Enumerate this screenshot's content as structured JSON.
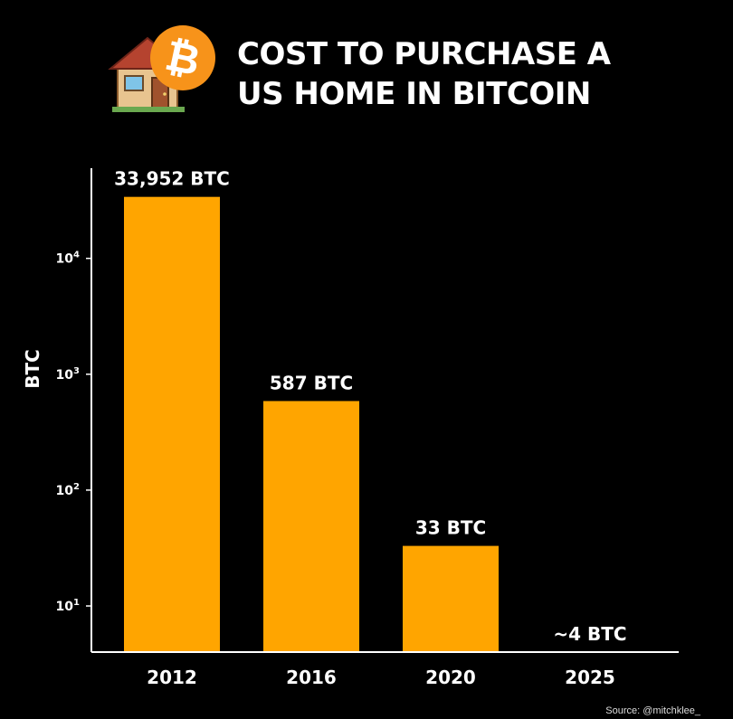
{
  "header": {
    "title_line1": "COST TO PURCHASE A",
    "title_line2": "US HOME IN BITCOIN",
    "icon": "house-with-bitcoin-icon"
  },
  "colors": {
    "background": "#000000",
    "bar": "#FFA500",
    "bitcoin_orange": "#F7931A",
    "text": "#FFFFFF"
  },
  "source": "Source: @mitchklee_",
  "chart_data": {
    "type": "bar",
    "title": "COST TO PURCHASE A US HOME IN BITCOIN",
    "categories": [
      "2012",
      "2016",
      "2020",
      "2025"
    ],
    "values": [
      33952,
      587,
      33,
      4
    ],
    "data_labels": [
      "33,952 BTC",
      "587 BTC",
      "33 BTC",
      "~4 BTC"
    ],
    "ylabel": "BTC",
    "xlabel": "",
    "yscale": "log",
    "ylim": [
      4,
      60000
    ],
    "yticks": [
      {
        "base": "10",
        "exp": "1",
        "value": 10
      },
      {
        "base": "10",
        "exp": "2",
        "value": 100
      },
      {
        "base": "10",
        "exp": "3",
        "value": 1000
      },
      {
        "base": "10",
        "exp": "4",
        "value": 10000
      }
    ],
    "grid": false,
    "legend": "none"
  }
}
